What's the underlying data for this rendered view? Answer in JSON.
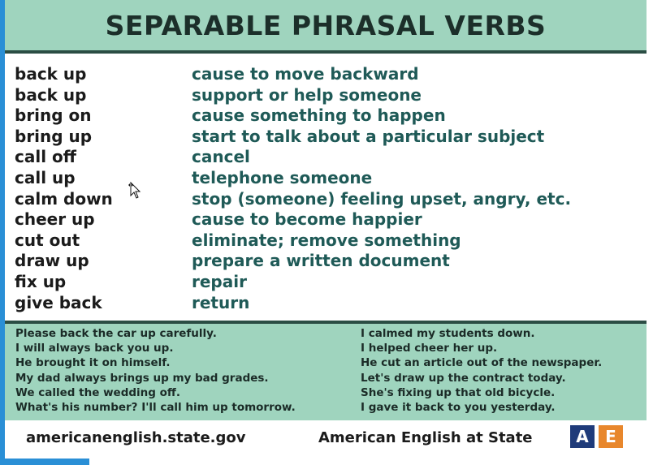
{
  "title": "SEPARABLE PHRASAL VERBS",
  "verbs": [
    {
      "verb": "back up",
      "meaning": "cause to move backward"
    },
    {
      "verb": "back up",
      "meaning": "support or help someone"
    },
    {
      "verb": "bring on",
      "meaning": "cause something to happen"
    },
    {
      "verb": "bring up",
      "meaning": "start to talk about a particular subject"
    },
    {
      "verb": "call off",
      "meaning": "cancel"
    },
    {
      "verb": "call up",
      "meaning": "telephone someone"
    },
    {
      "verb": "calm down",
      "meaning": "stop (someone) feeling upset, angry, etc."
    },
    {
      "verb": "cheer up",
      "meaning": "cause to become happier"
    },
    {
      "verb": "cut out",
      "meaning": "eliminate; remove something"
    },
    {
      "verb": "draw up",
      "meaning": "prepare a written document"
    },
    {
      "verb": "fix up",
      "meaning": "repair"
    },
    {
      "verb": "give back",
      "meaning": "return"
    }
  ],
  "examples_left": [
    "Please back the car up carefully.",
    "I will always back you up.",
    "He brought it on himself.",
    "My dad always brings up my bad grades.",
    "We called the wedding off.",
    "What's his number? I'll call him up tomorrow."
  ],
  "examples_right": [
    "I calmed my students down.",
    "I helped cheer her up.",
    "He cut an article out of the newspaper.",
    "Let's draw up the contract today.",
    "She's fixing up that old bicycle.",
    "I gave it back to you yesterday."
  ],
  "footer": {
    "site": "americanenglish.state.gov",
    "brand": "American English at State",
    "logo_a": "A",
    "logo_e": "E"
  },
  "colors": {
    "band": "#9fd4be",
    "rule": "#2b4d44",
    "meaning_text": "#1f5a57",
    "logo_blue": "#1f3b7a",
    "logo_orange": "#e8872c"
  },
  "icons": {
    "cursor": "move-cursor-icon"
  }
}
